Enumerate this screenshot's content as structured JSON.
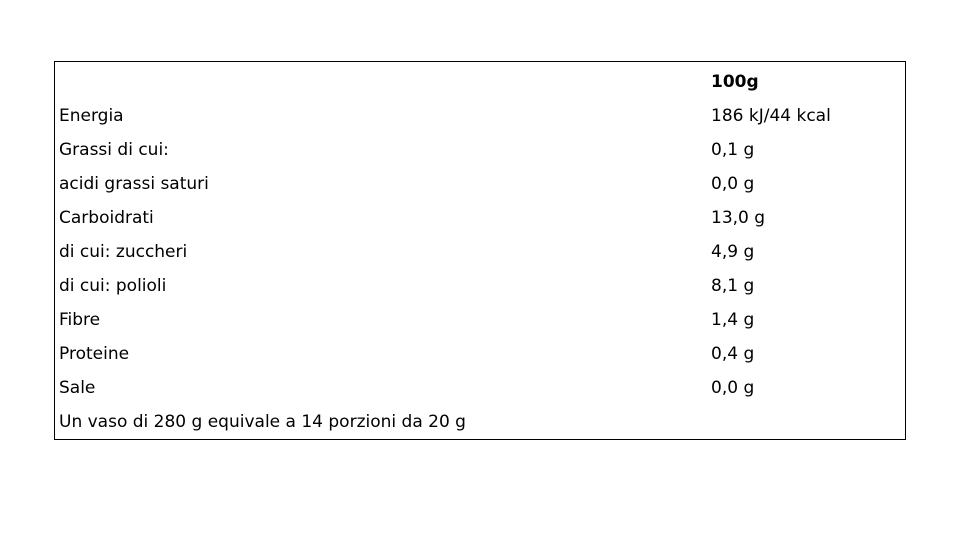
{
  "table": {
    "header": [
      "",
      "100g"
    ],
    "rows": [
      [
        "Energia",
        "186 kJ/44 kcal"
      ],
      [
        "Grassi di cui:",
        "0,1 g"
      ],
      [
        "acidi grassi saturi",
        "0,0 g"
      ],
      [
        "Carboidrati",
        "13,0 g"
      ],
      [
        "di cui: zuccheri",
        "4,9 g"
      ],
      [
        "di cui: polioli",
        "8,1 g"
      ],
      [
        "Fibre",
        "1,4 g"
      ],
      [
        "Proteine",
        "0,4 g"
      ],
      [
        "Sale",
        "0,0 g"
      ]
    ],
    "footer": "Un vaso di 280 g equivale a 14 porzioni da 20 g"
  }
}
